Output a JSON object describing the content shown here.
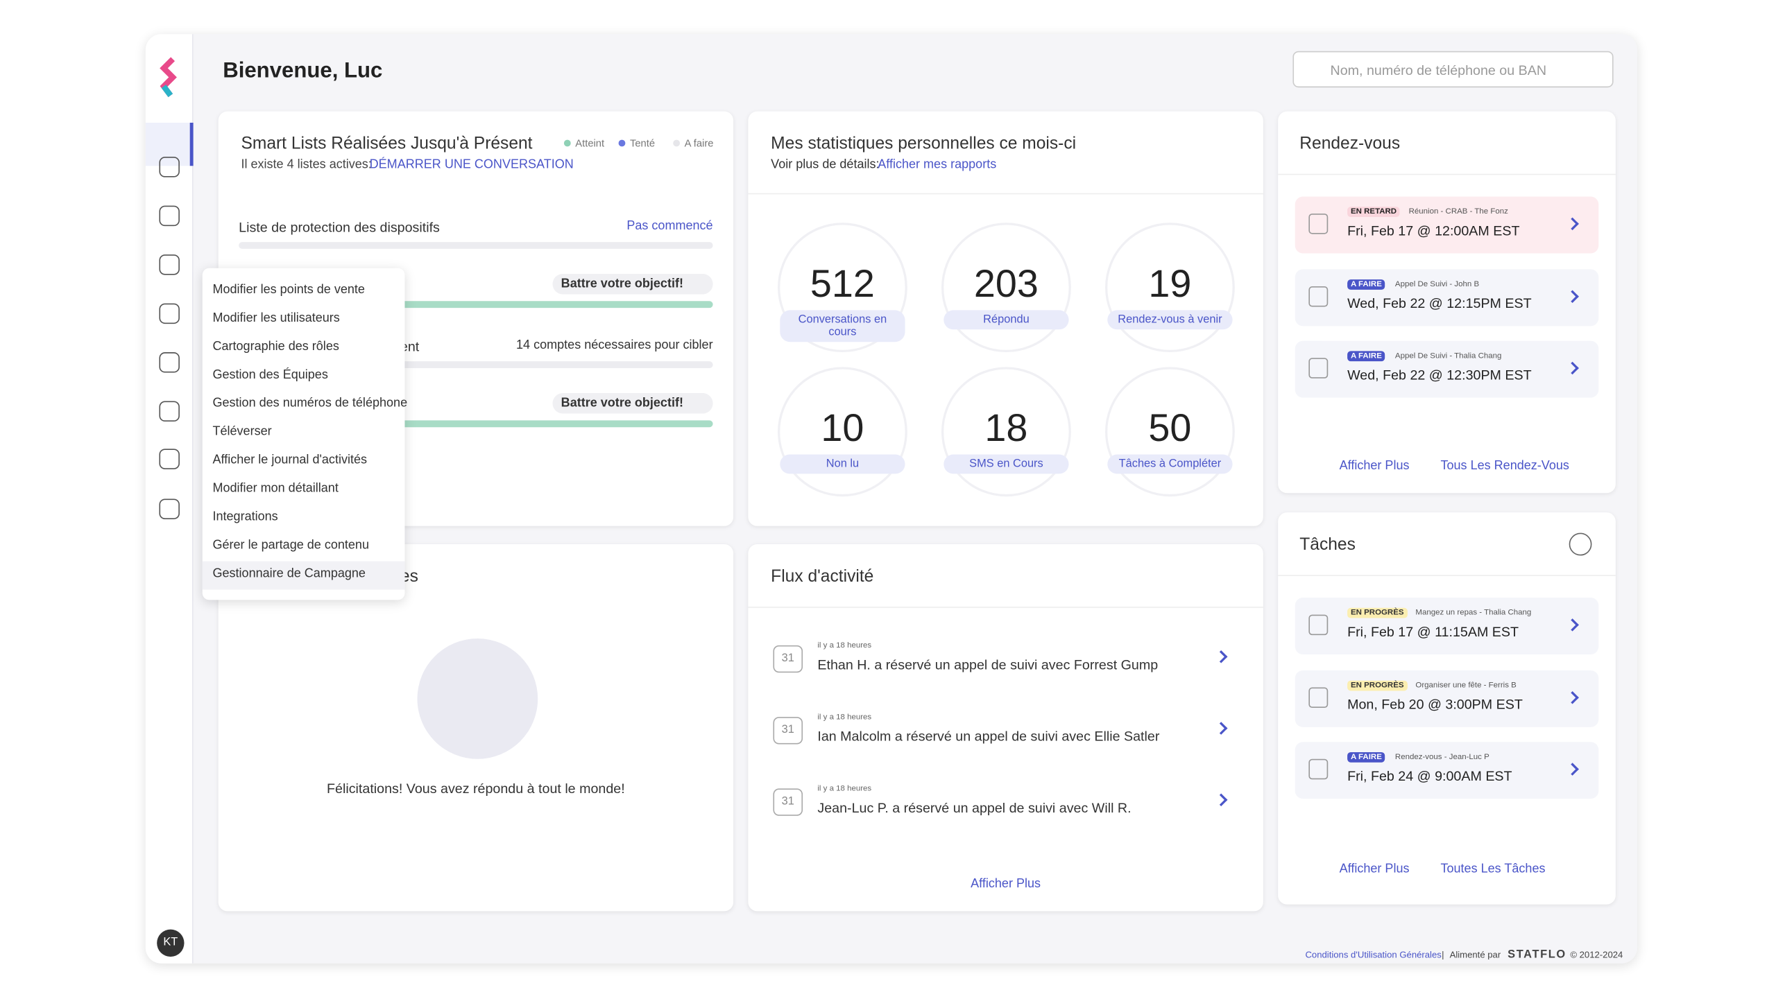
{
  "header": {
    "title": "Bienvenue, Luc",
    "search_placeholder": "Nom, numéro de téléphone ou BAN",
    "avatar": "KT"
  },
  "smart_lists": {
    "title": "Smart Lists Réalisées Jusqu'à Présent",
    "legend": [
      "Atteint",
      "Tenté",
      "A faire"
    ],
    "subtitle": "Il existe 4 listes actives:",
    "link": "DÉMARRER UNE CONVERSATION",
    "rows": [
      {
        "name": "Liste de protection des dispositifs",
        "status": "Pas commencé"
      },
      {
        "status": "Battre votre objectif!"
      },
      {
        "name": "ent",
        "status": "14 comptes nécessaires pour cibler"
      },
      {
        "status": "Battre votre objectif!"
      }
    ]
  },
  "replies": {
    "title": "es",
    "message": "Félicitations! Vous avez répondu à tout le monde!"
  },
  "stats": {
    "title": "Mes statistiques personnelles ce mois-ci",
    "subtitle": "Voir plus de détails:",
    "link": "Afficher mes rapports",
    "items": [
      {
        "value": "512",
        "label": "Conversations en cours"
      },
      {
        "value": "203",
        "label": "Répondu"
      },
      {
        "value": "19",
        "label": "Rendez-vous à venir"
      },
      {
        "value": "10",
        "label": "Non lu"
      },
      {
        "value": "18",
        "label": "SMS en Cours"
      },
      {
        "value": "50",
        "label": "Tâches à Compléter"
      }
    ]
  },
  "appointments": {
    "title": "Rendez-vous",
    "items": [
      {
        "badge": "EN RETARD",
        "desc": "Réunion - CRAB - The Fonz",
        "date": "Fri, Feb 17 @ 12:00AM EST"
      },
      {
        "badge": "A FAIRE",
        "desc": "Appel De Suivi - John B",
        "date": "Wed, Feb 22 @ 12:15PM EST"
      },
      {
        "badge": "A FAIRE",
        "desc": "Appel De Suivi - Thalia Chang",
        "date": "Wed, Feb 22 @ 12:30PM EST"
      }
    ],
    "links": [
      "Afficher Plus",
      "Tous Les Rendez-Vous"
    ]
  },
  "tasks": {
    "title": "Tâches",
    "items": [
      {
        "badge": "EN PROGRÈS",
        "desc": "Mangez un repas - Thalia Chang",
        "date": "Fri, Feb 17 @ 11:15AM EST"
      },
      {
        "badge": "EN PROGRÈS",
        "desc": "Organiser une fête - Ferris B",
        "date": "Mon, Feb 20 @ 3:00PM EST"
      },
      {
        "badge": "A FAIRE",
        "desc": "Rendez-vous - Jean-Luc P",
        "date": "Fri, Feb 24 @ 9:00AM EST"
      }
    ],
    "links": [
      "Afficher Plus",
      "Toutes Les Tâches"
    ]
  },
  "activity": {
    "title": "Flux d'activité",
    "calendar_day": "31",
    "items": [
      {
        "time": "il y a 18 heures",
        "text": "Ethan H. a réservé un appel de suivi avec Forrest Gump"
      },
      {
        "time": "il y a 18 heures",
        "text": "Ian Malcolm a réservé un appel de suivi avec Ellie Satler"
      },
      {
        "time": "il y a 18 heures",
        "text": "Jean-Luc P. a réservé un appel de suivi avec Will R."
      }
    ],
    "link": "Afficher Plus"
  },
  "menu": [
    "Modifier les points de vente",
    "Modifier les utilisateurs",
    "Cartographie des rôles",
    "Gestion des Équipes",
    "Gestion des numéros de téléphone",
    "Téléverser",
    "Afficher le journal d'activités",
    "Modifier mon détaillant",
    "Integrations",
    "Gérer le partage de contenu",
    "Gestionnaire de Campagne"
  ],
  "footer": {
    "terms": "Conditions d'Utilisation Générales",
    "separator": "|",
    "powered": "Alimenté par",
    "brand": "STATFLO",
    "copyright": "© 2012-2024"
  }
}
